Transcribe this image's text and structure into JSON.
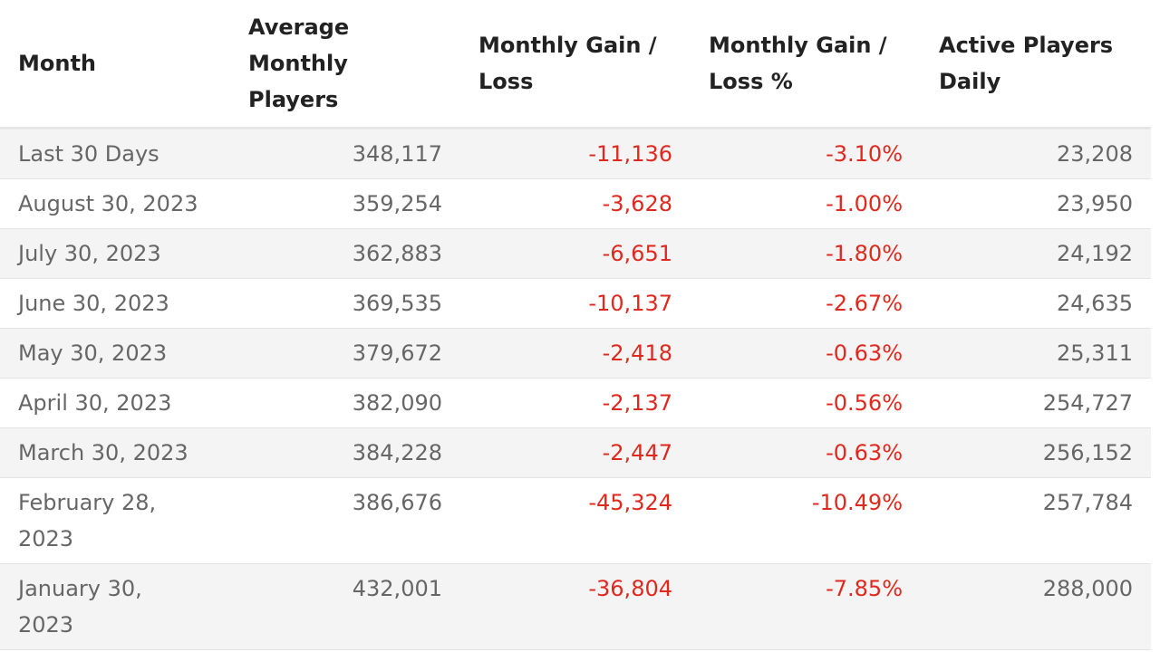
{
  "table": {
    "columns": [
      "Month",
      "Average Monthly Players",
      "Monthly Gain / Loss",
      "Monthly Gain / Loss %",
      "Active Players Daily"
    ],
    "rows": [
      [
        "Last 30 Days",
        "348,117",
        "-11,136",
        "-3.10%",
        "23,208"
      ],
      [
        "August 30, 2023",
        "359,254",
        "-3,628",
        "-1.00%",
        "23,950"
      ],
      [
        "July 30, 2023",
        "362,883",
        "-6,651",
        "-1.80%",
        "24,192"
      ],
      [
        "June 30, 2023",
        "369,535",
        "-10,137",
        "-2.67%",
        "24,635"
      ],
      [
        "May 30, 2023",
        "379,672",
        "-2,418",
        "-0.63%",
        "25,311"
      ],
      [
        "April 30, 2023",
        "382,090",
        "-2,137",
        "-0.56%",
        "254,727"
      ],
      [
        "March 30, 2023",
        "384,228",
        "-2,447",
        "-0.63%",
        "256,152"
      ],
      [
        "February 28, 2023",
        "386,676",
        "-45,324",
        "-10.49%",
        "257,784"
      ],
      [
        "January 30, 2023",
        "432,001",
        "-36,804",
        "-7.85%",
        "288,000"
      ]
    ]
  }
}
